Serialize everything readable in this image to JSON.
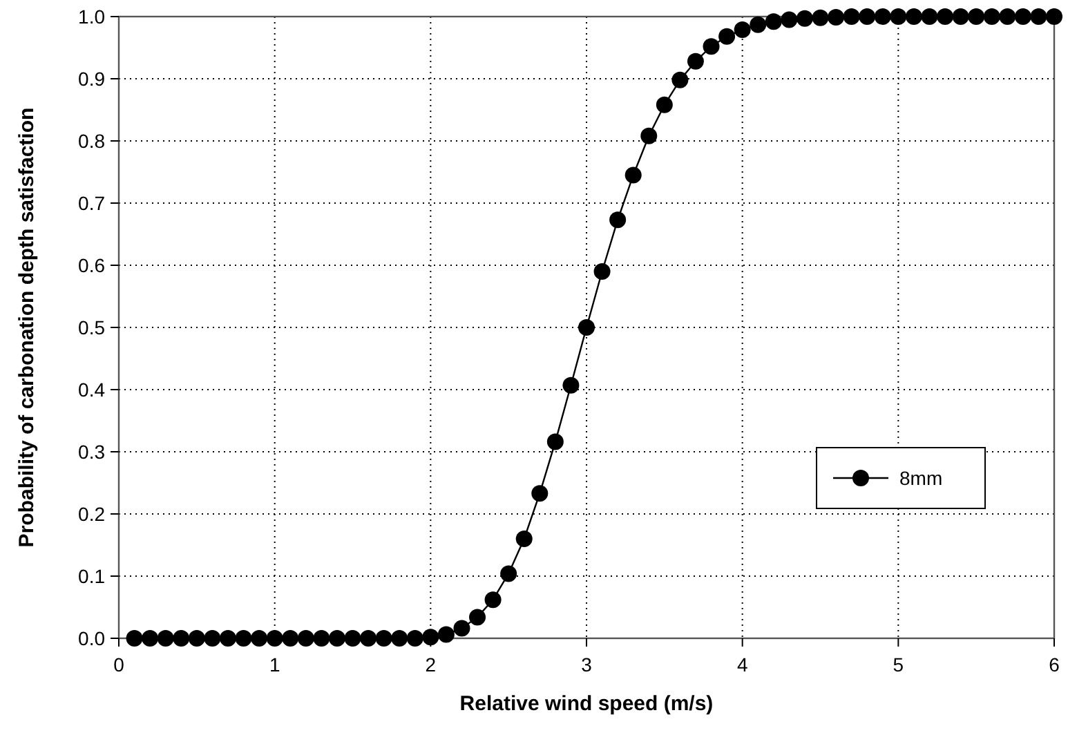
{
  "chart_data": {
    "type": "line",
    "xlabel": "Relative wind speed (m/s)",
    "ylabel": "Probability of carbonation depth satisfaction",
    "x": [
      0.1,
      0.2,
      0.3,
      0.4,
      0.5,
      0.6,
      0.7,
      0.8,
      0.9,
      1.0,
      1.1,
      1.2,
      1.3,
      1.4,
      1.5,
      1.6,
      1.7,
      1.8,
      1.9,
      2.0,
      2.1,
      2.2,
      2.3,
      2.4,
      2.5,
      2.6,
      2.7,
      2.8,
      2.9,
      3.0,
      3.1,
      3.2,
      3.3,
      3.4,
      3.5,
      3.6,
      3.7,
      3.8,
      3.9,
      4.0,
      4.1,
      4.2,
      4.3,
      4.4,
      4.5,
      4.6,
      4.7,
      4.8,
      4.9,
      5.0,
      5.1,
      5.2,
      5.3,
      5.4,
      5.5,
      5.6,
      5.7,
      5.8,
      5.9,
      6.0
    ],
    "series": [
      {
        "name": "8mm",
        "color": "#000000",
        "values": [
          0,
          0,
          0,
          0,
          0,
          0,
          0,
          0,
          0,
          0,
          0,
          0,
          0,
          0,
          0,
          0,
          0,
          0,
          0,
          0.002,
          0.006,
          0.016,
          0.034,
          0.062,
          0.104,
          0.16,
          0.233,
          0.316,
          0.407,
          0.5,
          0.59,
          0.673,
          0.745,
          0.808,
          0.858,
          0.898,
          0.928,
          0.952,
          0.968,
          0.979,
          0.987,
          0.992,
          0.995,
          0.997,
          0.998,
          0.999,
          1,
          1,
          1,
          1,
          1,
          1,
          1,
          1,
          1,
          1,
          1,
          1,
          1,
          1
        ]
      }
    ],
    "xlim": [
      0,
      6
    ],
    "xticks": [
      0,
      1,
      2,
      3,
      4,
      5,
      6
    ],
    "ylim": [
      0,
      1
    ],
    "yticks": [
      {
        "value": 0,
        "label": "0.0"
      },
      {
        "value": 0.1,
        "label": "0.1"
      },
      {
        "value": 0.2,
        "label": "0.2"
      },
      {
        "value": 0.3,
        "label": "0.3"
      },
      {
        "value": 0.4,
        "label": "0.4"
      },
      {
        "value": 0.5,
        "label": "0.5"
      },
      {
        "value": 0.6,
        "label": "0.6"
      },
      {
        "value": 0.7,
        "label": "0.7"
      },
      {
        "value": 0.8,
        "label": "0.8"
      },
      {
        "value": 0.9,
        "label": "0.9"
      },
      {
        "value": 1,
        "label": "1.0"
      }
    ],
    "grid": true,
    "legend": "bottom right",
    "marker": "circle",
    "line_style": "solid"
  }
}
